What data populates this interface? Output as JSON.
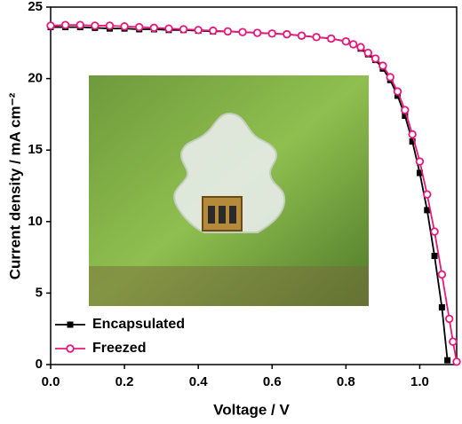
{
  "chart_data": {
    "type": "line",
    "xlabel": "Voltage / V",
    "ylabel": "Current density / mA cm⁻²",
    "xlim": [
      0,
      1.1
    ],
    "ylim": [
      0,
      25
    ],
    "xticks": [
      {
        "value": 0,
        "label": "0.0"
      },
      0.2,
      0.4,
      0.6,
      0.8,
      {
        "value": 1,
        "label": "1.0"
      }
    ],
    "yticks": [
      0,
      5,
      10,
      15,
      20,
      25
    ],
    "legend": "lower left",
    "series": [
      {
        "name": "Encapsulated",
        "color": "#000000",
        "marker": "square",
        "x": [
          0,
          0.04,
          0.08,
          0.12,
          0.16,
          0.2,
          0.24,
          0.28,
          0.32,
          0.36,
          0.4,
          0.44,
          0.48,
          0.52,
          0.56,
          0.6,
          0.64,
          0.68,
          0.72,
          0.76,
          0.8,
          0.82,
          0.84,
          0.86,
          0.88,
          0.9,
          0.92,
          0.94,
          0.96,
          0.98,
          1.0,
          1.02,
          1.04,
          1.06,
          1.075
        ],
        "values": [
          23.6,
          23.6,
          23.6,
          23.55,
          23.5,
          23.5,
          23.45,
          23.45,
          23.4,
          23.4,
          23.35,
          23.3,
          23.3,
          23.25,
          23.2,
          23.15,
          23.1,
          23.0,
          22.9,
          22.8,
          22.6,
          22.4,
          22.1,
          21.7,
          21.3,
          20.7,
          19.9,
          18.8,
          17.4,
          15.6,
          13.4,
          10.8,
          7.6,
          4.0,
          0.3
        ]
      },
      {
        "name": "Freezed",
        "color": "#e8197c",
        "marker": "circle",
        "x": [
          0,
          0.04,
          0.08,
          0.12,
          0.16,
          0.2,
          0.24,
          0.28,
          0.32,
          0.36,
          0.4,
          0.44,
          0.48,
          0.52,
          0.56,
          0.6,
          0.64,
          0.68,
          0.72,
          0.76,
          0.8,
          0.82,
          0.84,
          0.86,
          0.88,
          0.9,
          0.92,
          0.94,
          0.96,
          0.98,
          1.0,
          1.02,
          1.04,
          1.06,
          1.08,
          1.09,
          1.1
        ],
        "values": [
          23.7,
          23.75,
          23.75,
          23.7,
          23.7,
          23.65,
          23.6,
          23.55,
          23.5,
          23.45,
          23.4,
          23.35,
          23.3,
          23.25,
          23.2,
          23.15,
          23.1,
          23.0,
          22.9,
          22.8,
          22.6,
          22.4,
          22.2,
          21.8,
          21.4,
          20.9,
          20.1,
          19.1,
          17.8,
          16.1,
          14.2,
          11.9,
          9.3,
          6.3,
          3.2,
          1.6,
          0.2
        ]
      }
    ]
  }
}
